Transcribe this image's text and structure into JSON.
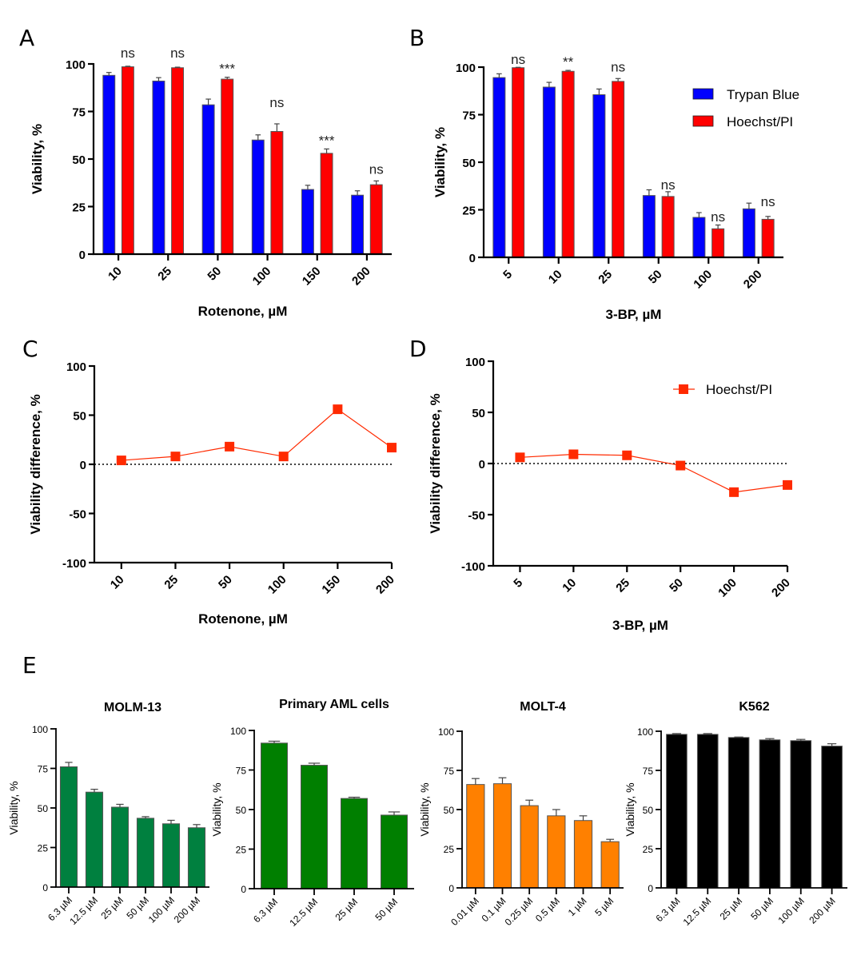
{
  "figure": {
    "panel_letters": [
      "A",
      "B",
      "C",
      "D",
      "E"
    ]
  },
  "legend": {
    "items": [
      {
        "label": "Trypan Blue",
        "color": "#0000ff"
      },
      {
        "label": "Hoechst/PI",
        "color": "#ff0000"
      }
    ],
    "line_label": "Hoechst/PI",
    "line_color": "#ff2a00"
  },
  "chart_data": [
    {
      "id": "A",
      "type": "bar",
      "title": "",
      "xlabel": "Rotenone, µM",
      "ylabel": "Viability, %",
      "ylim": [
        0,
        100
      ],
      "yticks": [
        0,
        25,
        50,
        75,
        100
      ],
      "categories": [
        "10",
        "25",
        "50",
        "100",
        "150",
        "200"
      ],
      "series": [
        {
          "name": "Trypan Blue",
          "color": "#0000ff",
          "values": [
            94,
            91,
            78.5,
            60,
            34,
            31
          ],
          "errors": [
            1.5,
            1.8,
            3,
            2.7,
            2.2,
            2.3
          ]
        },
        {
          "name": "Hoechst/PI",
          "color": "#ff0000",
          "values": [
            98.5,
            98,
            92,
            64.5,
            53,
            36.5
          ],
          "errors": [
            0.3,
            0.3,
            1,
            4,
            2.3,
            2
          ]
        }
      ],
      "annotations": [
        "ns",
        "ns",
        "***",
        "ns",
        "***",
        "ns"
      ]
    },
    {
      "id": "B",
      "type": "bar",
      "title": "",
      "xlabel": "3-BP, µM",
      "ylabel": "Viability, %",
      "ylim": [
        0,
        100
      ],
      "yticks": [
        0,
        25,
        50,
        75,
        100
      ],
      "categories": [
        "5",
        "10",
        "25",
        "50",
        "100",
        "200"
      ],
      "series": [
        {
          "name": "Trypan Blue",
          "color": "#0000ff",
          "values": [
            94.5,
            89.5,
            85.5,
            32.5,
            21,
            25.5
          ],
          "errors": [
            2,
            2.5,
            3,
            3,
            2.5,
            3
          ]
        },
        {
          "name": "Hoechst/PI",
          "color": "#ff0000",
          "values": [
            99.7,
            97.8,
            92.5,
            32,
            15,
            20
          ],
          "errors": [
            0.2,
            0.5,
            1.5,
            2.5,
            2,
            1.5
          ]
        }
      ],
      "annotations": [
        "ns",
        "**",
        "ns",
        "ns",
        "ns",
        "ns"
      ],
      "legend_position": "top-right"
    },
    {
      "id": "C",
      "type": "line",
      "title": "",
      "xlabel": "Rotenone, µM",
      "ylabel": "Viability difference, %",
      "ylim": [
        -100,
        100
      ],
      "yticks": [
        -100,
        -50,
        0,
        50,
        100
      ],
      "categories": [
        "10",
        "25",
        "50",
        "100",
        "150",
        "200"
      ],
      "series": [
        {
          "name": "Hoechst/PI",
          "color": "#ff2a00",
          "values": [
            4,
            8,
            18,
            8,
            56,
            17
          ]
        }
      ],
      "reference_line": 0
    },
    {
      "id": "D",
      "type": "line",
      "title": "",
      "xlabel": "3-BP, µM",
      "ylabel": "Viability difference, %",
      "ylim": [
        -100,
        100
      ],
      "yticks": [
        -100,
        -50,
        0,
        50,
        100
      ],
      "categories": [
        "5",
        "10",
        "25",
        "50",
        "100",
        "200"
      ],
      "series": [
        {
          "name": "Hoechst/PI",
          "color": "#ff2a00",
          "values": [
            6,
            9,
            8,
            -2,
            -28,
            -21
          ]
        }
      ],
      "reference_line": 0,
      "legend_position": "top-right"
    },
    {
      "id": "E1",
      "type": "bar",
      "title": "MOLM-13",
      "xlabel": "",
      "ylabel": "Viability, %",
      "ylim": [
        0,
        100
      ],
      "yticks": [
        0,
        25,
        50,
        75,
        100
      ],
      "categories": [
        "6.3 µM",
        "12.5 µM",
        "25 µM",
        "50 µM",
        "100 µM",
        "200 µM"
      ],
      "series": [
        {
          "name": "MOLM-13",
          "color": "#00803f",
          "values": [
            76,
            60,
            50.5,
            43.5,
            40,
            37.5
          ],
          "errors": [
            2.8,
            1.8,
            1.8,
            1,
            2.2,
            2
          ]
        }
      ]
    },
    {
      "id": "E2",
      "type": "bar",
      "title": "Primary AML cells",
      "xlabel": "",
      "ylabel": "Viability, %",
      "ylim": [
        0,
        100
      ],
      "yticks": [
        0,
        25,
        50,
        75,
        100
      ],
      "categories": [
        "6.3 µM",
        "12.5 µM",
        "25 µM",
        "50 µM"
      ],
      "series": [
        {
          "name": "Primary AML cells",
          "color": "#007f00",
          "values": [
            92,
            78,
            57,
            46.5
          ],
          "errors": [
            1.2,
            1.3,
            0.8,
            2
          ]
        }
      ]
    },
    {
      "id": "E3",
      "type": "bar",
      "title": "MOLT-4",
      "xlabel": "",
      "ylabel": "Viability, %",
      "ylim": [
        0,
        100
      ],
      "yticks": [
        0,
        25,
        50,
        75,
        100
      ],
      "categories": [
        "0.01 µM",
        "0.1 µM",
        "0.25 µM",
        "0.5 µM",
        "1 µM",
        "5 µM"
      ],
      "series": [
        {
          "name": "MOLT-4",
          "color": "#ff8000",
          "values": [
            66,
            66.5,
            52.5,
            46,
            43,
            29.5
          ],
          "errors": [
            3.8,
            3.8,
            3.5,
            4,
            3,
            1.5
          ]
        }
      ]
    },
    {
      "id": "E4",
      "type": "bar",
      "title": "K562",
      "xlabel": "",
      "ylabel": "Viability, %",
      "ylim": [
        0,
        100
      ],
      "yticks": [
        0,
        25,
        50,
        75,
        100
      ],
      "categories": [
        "6.3 µM",
        "12.5 µM",
        "25 µM",
        "50 µM",
        "100 µM",
        "200 µM"
      ],
      "series": [
        {
          "name": "K562",
          "color": "#000000",
          "values": [
            98,
            98,
            96,
            94.5,
            94,
            90.5
          ],
          "errors": [
            0.5,
            0.5,
            0.3,
            0.8,
            0.8,
            1.5
          ]
        }
      ]
    }
  ]
}
